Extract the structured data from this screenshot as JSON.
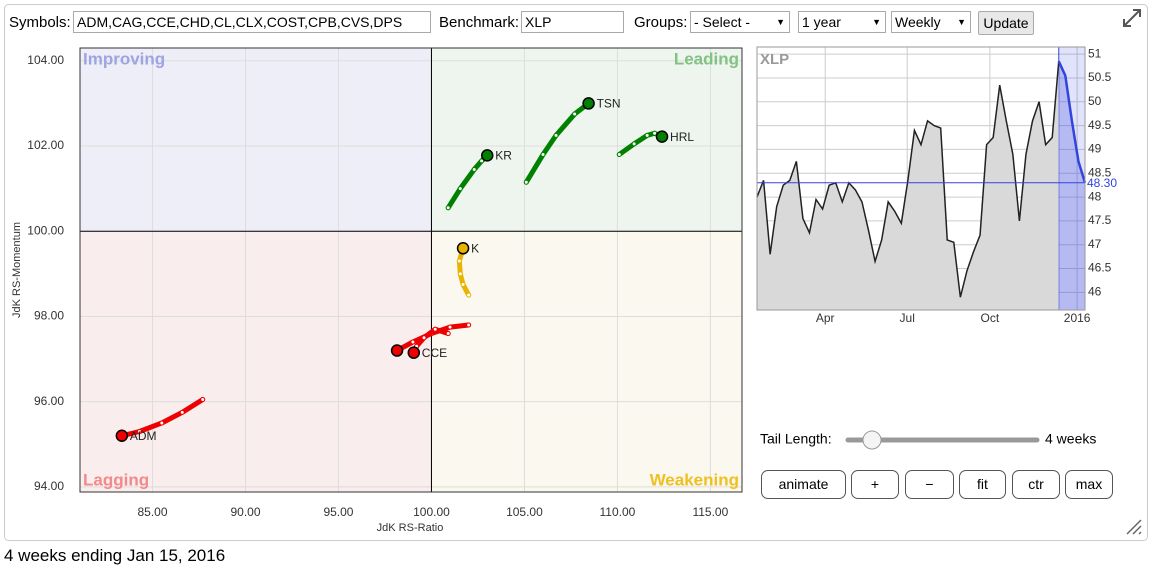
{
  "toolbar": {
    "symbols_label": "Symbols:",
    "symbols_value": "ADM,CAG,CCE,CHD,CL,CLX,COST,CPB,CVS,DPS",
    "benchmark_label": "Benchmark:",
    "benchmark_value": "XLP",
    "groups_label": "Groups:",
    "groups_value": "- Select -",
    "period_value": "1 year",
    "frequency_value": "Weekly",
    "update_button": "Update"
  },
  "chart_data": [
    {
      "type": "rrg",
      "xlabel": "JdK RS-Ratio",
      "ylabel": "JdK RS-Momentum",
      "center": [
        100,
        100
      ],
      "quadrants": [
        {
          "label": "Improving",
          "color": "#9ea4e2",
          "fill": "#eeeef8"
        },
        {
          "label": "Leading",
          "color": "#82c282",
          "fill": "#eef5ee"
        },
        {
          "label": "Lagging",
          "color": "#f28a8a",
          "fill": "#f9eded"
        },
        {
          "label": "Weakening",
          "color": "#f0c020",
          "fill": "#faf8ef"
        }
      ],
      "xlim": [
        81.1,
        116.7
      ],
      "ylim": [
        93.88,
        104.3
      ],
      "xticks": [
        {
          "value": 85,
          "label": "85.00"
        },
        {
          "value": 90,
          "label": "90.00"
        },
        {
          "value": 95,
          "label": "95.00"
        },
        {
          "value": 100,
          "label": "100.00"
        },
        {
          "value": 105,
          "label": "105.00"
        },
        {
          "value": 110,
          "label": "110.00"
        },
        {
          "value": 115,
          "label": "115.00"
        }
      ],
      "yticks": [
        {
          "value": 94,
          "label": "94.00"
        },
        {
          "value": 96,
          "label": "96.00"
        },
        {
          "value": 98,
          "label": "98.00"
        },
        {
          "value": 100,
          "label": "100.00"
        },
        {
          "value": 102,
          "label": "102.00"
        },
        {
          "value": 104,
          "label": "104.00"
        }
      ],
      "series": [
        {
          "name": "TSN",
          "color": "#008000",
          "x": [
            105.1,
            106.0,
            106.7,
            107.7,
            108.45
          ],
          "y": [
            101.15,
            101.8,
            102.25,
            102.75,
            103.0
          ]
        },
        {
          "name": "KR",
          "color": "#008000",
          "x": [
            100.9,
            101.55,
            102.3,
            102.7,
            103.0
          ],
          "y": [
            100.55,
            101.0,
            101.45,
            101.65,
            101.78
          ]
        },
        {
          "name": "HRL",
          "color": "#008000",
          "x": [
            110.1,
            110.9,
            111.6,
            112.0,
            112.4
          ],
          "y": [
            101.8,
            102.05,
            102.25,
            102.3,
            102.22
          ]
        },
        {
          "name": "K",
          "color": "#e8b400",
          "x": [
            102.0,
            101.7,
            101.55,
            101.5,
            101.7
          ],
          "y": [
            98.5,
            98.75,
            99.0,
            99.3,
            99.6
          ]
        },
        {
          "name": "ADM",
          "color": "#ee0000",
          "x": [
            87.7,
            86.6,
            85.5,
            84.3,
            83.35
          ],
          "y": [
            96.05,
            95.75,
            95.5,
            95.3,
            95.2
          ]
        },
        {
          "color": "#ee0000",
          "x": [
            102.0,
            101.0,
            100.0,
            99.0,
            98.15
          ],
          "y": [
            97.8,
            97.75,
            97.6,
            97.4,
            97.2
          ]
        },
        {
          "name": "CCE",
          "color": "#ee0000",
          "x": [
            100.9,
            100.2,
            99.6,
            99.2,
            99.05
          ],
          "y": [
            97.6,
            97.7,
            97.5,
            97.3,
            97.15
          ]
        }
      ]
    },
    {
      "type": "line",
      "title": "XLP",
      "color": "#222222",
      "fill": "#d9d9d9",
      "highlight_color": "#3344dd",
      "values": [
        48.0,
        48.35,
        46.8,
        47.8,
        48.25,
        48.35,
        48.75,
        47.55,
        47.25,
        47.95,
        47.75,
        48.25,
        48.3,
        47.9,
        48.3,
        48.15,
        47.9,
        47.3,
        46.65,
        47.1,
        47.9,
        47.7,
        47.45,
        48.35,
        49.4,
        49.1,
        49.6,
        49.5,
        49.45,
        47.1,
        47.05,
        45.9,
        46.45,
        46.85,
        47.2,
        49.1,
        49.25,
        50.35,
        49.6,
        48.9,
        47.5,
        48.9,
        49.6,
        50.0,
        49.1,
        49.25,
        50.85,
        50.55,
        49.6,
        48.75,
        48.3
      ],
      "xlim": [
        0,
        50
      ],
      "xticks": [
        {
          "value": 10.4,
          "label": "Apr"
        },
        {
          "value": 22.9,
          "label": "Jul"
        },
        {
          "value": 35.5,
          "label": "Oct"
        },
        {
          "value": 48.8,
          "label": "2016"
        }
      ],
      "ylim": [
        45.63,
        51.15
      ],
      "yticks": [
        46,
        46.5,
        47,
        47.5,
        48,
        48.5,
        49,
        49.5,
        50,
        50.5,
        51
      ],
      "current": {
        "value": 48.3,
        "label": "48.30"
      }
    }
  ],
  "controls": {
    "tail_label": "Tail Length:",
    "tail_value": "4 weeks",
    "buttons": [
      "animate",
      "+",
      "−",
      "fit",
      "ctr",
      "max"
    ]
  },
  "footer": "4 weeks ending Jan 15, 2016"
}
